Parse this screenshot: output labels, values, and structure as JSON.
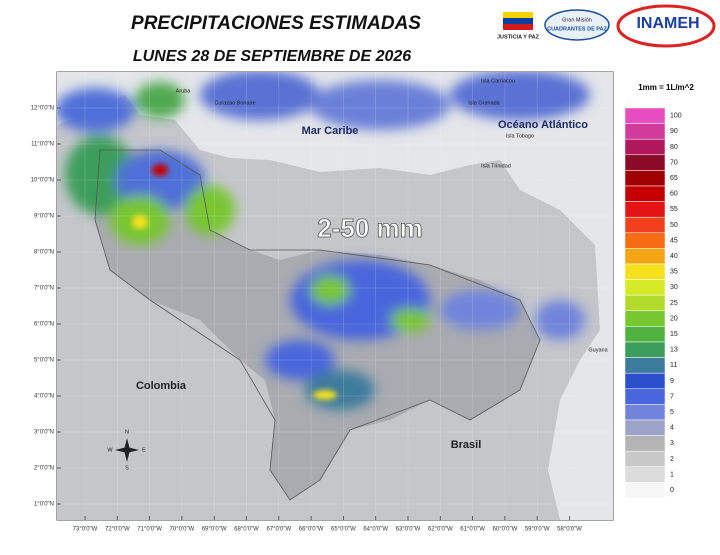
{
  "header": {
    "title": "PRECIPITACIONES ESTIMADAS",
    "subtitle": "LUNES 28 DE SEPTIEMBRE DE 2026",
    "logos": [
      "JUSTICIA Y PAZ",
      "Gran Misión",
      "CUADRANTES DE PAZ",
      "INAMEH"
    ]
  },
  "map": {
    "headline": "2-50 mm",
    "labels": {
      "sea": "Mar Caribe",
      "ocean": "Océano Atlántico",
      "colombia": "Colombia",
      "brasil": "Brasil",
      "guyana": "Guyana",
      "aruba": "Aruba",
      "curazao": "Curazao  Bonaire",
      "carriacou": "Isla Carriacou",
      "granada": "Isla Granada",
      "trinidad": "Isla Trinidad",
      "tobago": "Isla Tobago"
    },
    "lat_ticks": [
      "12°0'0\"N",
      "11°0'0\"N",
      "10°0'0\"N",
      "9°0'0\"N",
      "8°0'0\"N",
      "7°0'0\"N",
      "6°0'0\"N",
      "5°0'0\"N",
      "4°0'0\"N",
      "3°0'0\"N",
      "2°0'0\"N",
      "1°0'0\"N"
    ],
    "lon_ticks": [
      "73°0'0\"W",
      "72°0'0\"W",
      "71°0'0\"W",
      "70°0'0\"W",
      "69°0'0\"W",
      "68°0'0\"W",
      "67°0'0\"W",
      "66°0'0\"W",
      "65°0'0\"W",
      "64°0'0\"W",
      "63°0'0\"W",
      "62°0'0\"W",
      "61°0'0\"W",
      "60°0'0\"W",
      "59°0'0\"W",
      "58°0'0\"W"
    ],
    "compass": [
      "N",
      "S",
      "E",
      "W"
    ]
  },
  "legend": {
    "unit": "1mm = 1L/m^2",
    "entries": [
      {
        "value": 100,
        "color": "#e84dc0"
      },
      {
        "value": 90,
        "color": "#d23a9c"
      },
      {
        "value": 80,
        "color": "#b0185e"
      },
      {
        "value": 70,
        "color": "#8a0a28"
      },
      {
        "value": 65,
        "color": "#a00000"
      },
      {
        "value": 60,
        "color": "#c60000"
      },
      {
        "value": 55,
        "color": "#e41414"
      },
      {
        "value": 50,
        "color": "#f0401e"
      },
      {
        "value": 45,
        "color": "#f56c14"
      },
      {
        "value": 40,
        "color": "#f5a514"
      },
      {
        "value": 35,
        "color": "#f5e11e"
      },
      {
        "value": 30,
        "color": "#d6ea28"
      },
      {
        "value": 25,
        "color": "#b2da2a"
      },
      {
        "value": 20,
        "color": "#78c632"
      },
      {
        "value": 15,
        "color": "#4fb23e"
      },
      {
        "value": 13,
        "color": "#3c9e5c"
      },
      {
        "value": 11,
        "color": "#3c7c9c"
      },
      {
        "value": 9,
        "color": "#2a50cc"
      },
      {
        "value": 7,
        "color": "#4a66dc"
      },
      {
        "value": 5,
        "color": "#7084dc"
      },
      {
        "value": 4,
        "color": "#9ca2c8"
      },
      {
        "value": 3,
        "color": "#b4b4b4"
      },
      {
        "value": 2,
        "color": "#c8c8c8"
      },
      {
        "value": 1,
        "color": "#dcdcdc"
      },
      {
        "value": 0,
        "color": "#f6f6f6"
      }
    ]
  }
}
